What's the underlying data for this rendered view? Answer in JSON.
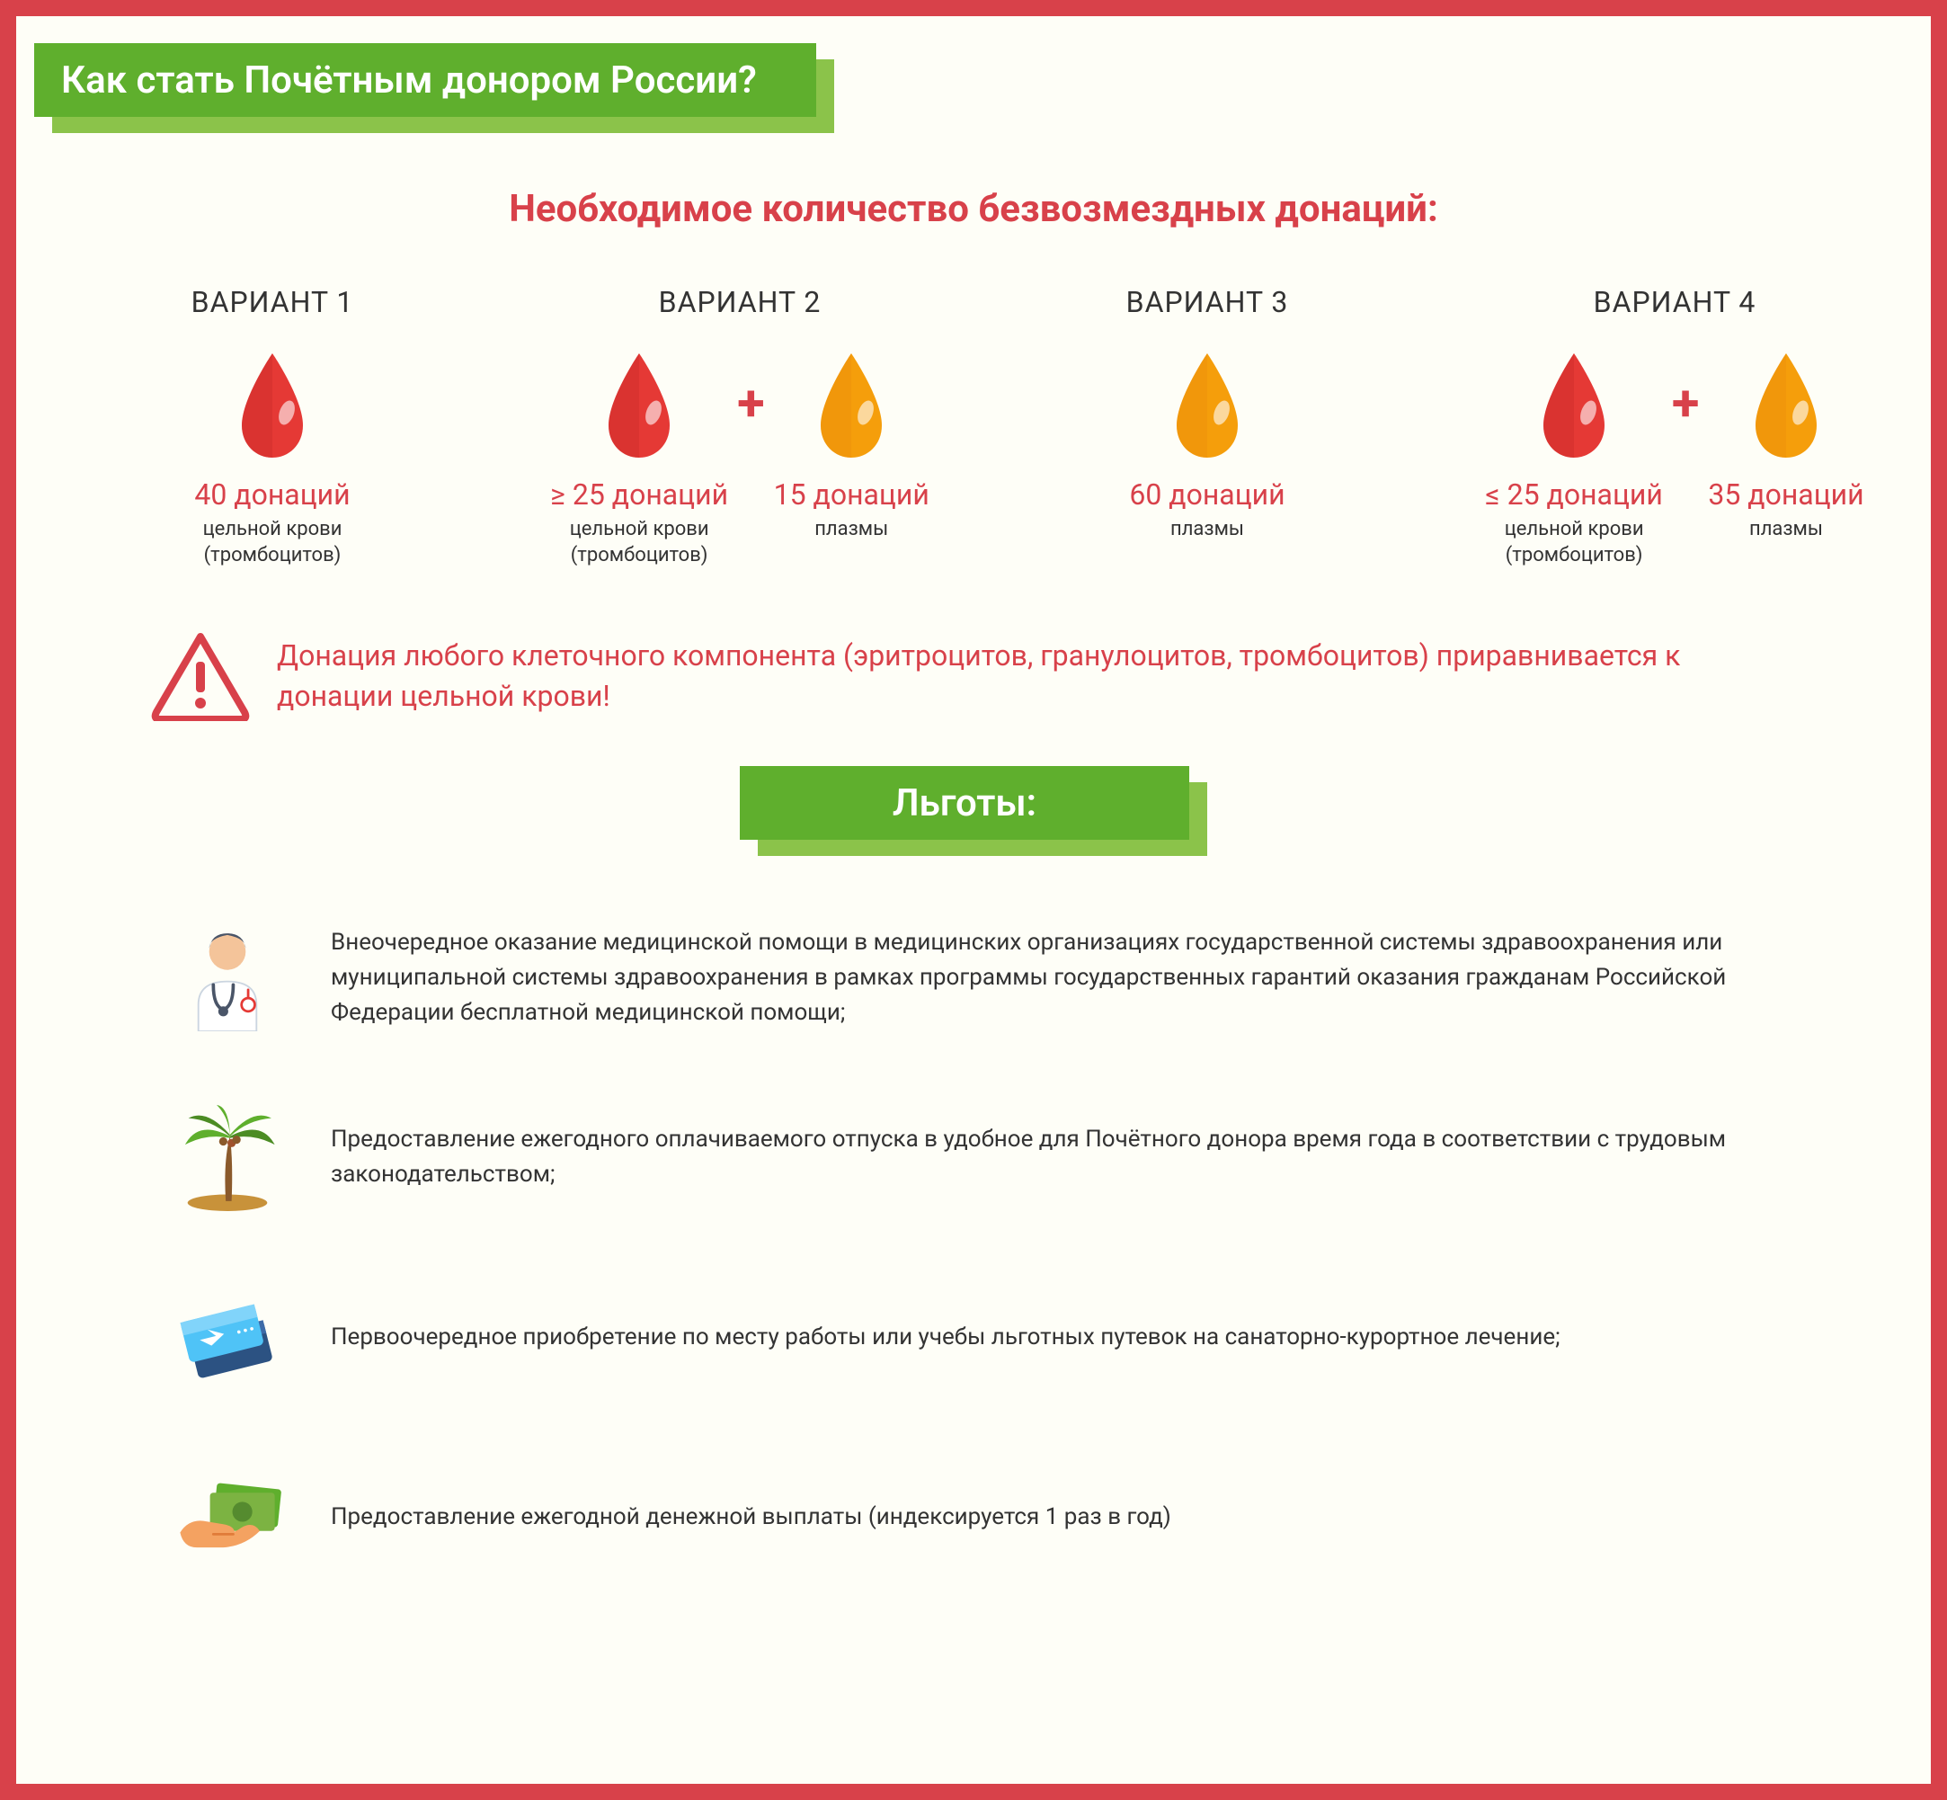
{
  "colors": {
    "frame_border": "#D8414A",
    "background": "#FEFEF7",
    "banner_main": "#5FAF2D",
    "banner_shadow": "#8BC34A",
    "banner_text": "#FFFFFF",
    "red_text": "#D8414A",
    "body_text": "#333333",
    "drop_red": "#E53935",
    "drop_red_dark": "#C62828",
    "drop_orange": "#F59E0B",
    "drop_orange_dark": "#EA8A0B"
  },
  "title": "Как стать Почётным донором России?",
  "subtitle": "Необходимое количество безвозмездных донаций:",
  "options": [
    {
      "title": "ВАРИАНТ 1",
      "drops": [
        {
          "color": "red",
          "count": "40 донаций",
          "desc": "цельной крови\n(тромбоцитов)"
        }
      ]
    },
    {
      "title": "ВАРИАНТ 2",
      "drops": [
        {
          "color": "red",
          "count": "≥ 25 донаций",
          "desc": "цельной крови\n(тромбоцитов)"
        },
        {
          "color": "orange",
          "count": "15 донаций",
          "desc": "плазмы"
        }
      ]
    },
    {
      "title": "ВАРИАНТ 3",
      "drops": [
        {
          "color": "orange",
          "count": "60 донаций",
          "desc": "плазмы"
        }
      ]
    },
    {
      "title": "ВАРИАНТ 4",
      "drops": [
        {
          "color": "red",
          "count": "≤ 25 донаций",
          "desc": "цельной крови\n(тромбоцитов)"
        },
        {
          "color": "orange",
          "count": "35 донаций",
          "desc": "плазмы"
        }
      ]
    }
  ],
  "warning": "Донация любого клеточного компонента (эритроцитов, гранулоцитов, тромбоцитов) приравнивается к донации цельной крови!",
  "benefits_title": "Льготы:",
  "benefits": [
    {
      "icon": "doctor",
      "text": "Внеочередное оказание медицинской помощи в медицинских организациях государственной системы здравоохранения или муниципальной системы здравоохранения в рамках программы государственных гарантий оказания гражданам Российской Федерации бесплатной медицинской помощи;"
    },
    {
      "icon": "palm",
      "text": "Предоставление ежегодного оплачиваемого отпуска в удобное для Почётного донора время года в соответствии с трудовым законодательством;"
    },
    {
      "icon": "tickets",
      "text": "Первоочередное приобретение по месту работы или учебы льготных путевок на санаторно-курортное лечение;"
    },
    {
      "icon": "money",
      "text": "Предоставление ежегодной денежной выплаты (индексируется 1 раз в год)"
    }
  ]
}
